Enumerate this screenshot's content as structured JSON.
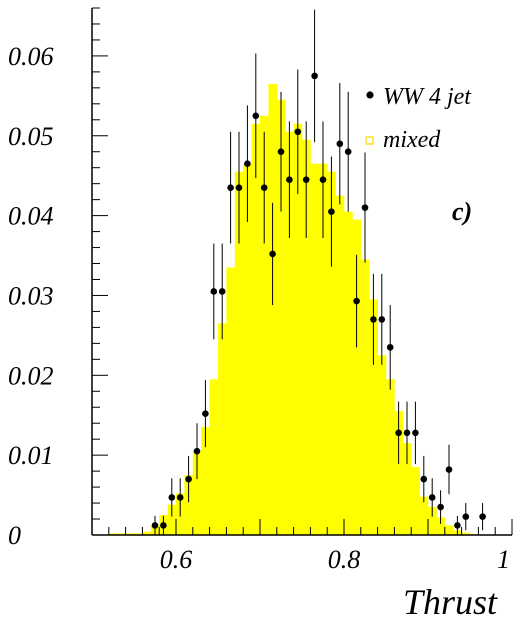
{
  "chart_data": {
    "type": "histogram",
    "xlabel": "Thrust",
    "ylabel": "",
    "xlim": [
      0.5,
      1.0
    ],
    "ylim": [
      0,
      0.066
    ],
    "x_ticks": [
      "0.6",
      "0.8",
      "1"
    ],
    "x_tick_values": [
      0.6,
      0.8,
      1.0
    ],
    "y_ticks": [
      "0",
      "0.01",
      "0.02",
      "0.03",
      "0.04",
      "0.05",
      "0.06"
    ],
    "y_tick_values": [
      0,
      0.01,
      0.02,
      0.03,
      0.04,
      0.05,
      0.06
    ],
    "panel_label": "c)",
    "colors": {
      "histogram_fill": "#ffff00",
      "points": "#000000",
      "axis": "#000000"
    },
    "bin_width": 0.01,
    "series": [
      {
        "name": "mixed",
        "style": "filled-histogram",
        "bin_lows": [
          0.52,
          0.53,
          0.54,
          0.55,
          0.56,
          0.57,
          0.58,
          0.59,
          0.6,
          0.61,
          0.62,
          0.63,
          0.64,
          0.65,
          0.66,
          0.67,
          0.68,
          0.69,
          0.7,
          0.71,
          0.72,
          0.73,
          0.74,
          0.75,
          0.76,
          0.77,
          0.78,
          0.79,
          0.8,
          0.81,
          0.82,
          0.83,
          0.84,
          0.85,
          0.86,
          0.87,
          0.88,
          0.89,
          0.9,
          0.91,
          0.92,
          0.93,
          0.94,
          0.95
        ],
        "values": [
          0.0002,
          0.0002,
          0.0002,
          0.0002,
          0.0004,
          0.0012,
          0.0025,
          0.0038,
          0.0052,
          0.0075,
          0.0105,
          0.0135,
          0.0195,
          0.0265,
          0.0335,
          0.0455,
          0.0465,
          0.0515,
          0.0525,
          0.0565,
          0.0545,
          0.0505,
          0.0515,
          0.0495,
          0.0465,
          0.0465,
          0.0455,
          0.0425,
          0.0405,
          0.0395,
          0.0345,
          0.0295,
          0.0225,
          0.0195,
          0.0155,
          0.0115,
          0.0085,
          0.0048,
          0.0035,
          0.0022,
          0.0012,
          0.0006,
          0.0003,
          0.0001
        ]
      },
      {
        "name": "WW 4 jet",
        "style": "points-with-errors",
        "x": [
          0.575,
          0.585,
          0.595,
          0.605,
          0.615,
          0.625,
          0.635,
          0.645,
          0.655,
          0.665,
          0.675,
          0.685,
          0.695,
          0.705,
          0.715,
          0.725,
          0.735,
          0.745,
          0.755,
          0.765,
          0.775,
          0.785,
          0.795,
          0.805,
          0.815,
          0.825,
          0.835,
          0.845,
          0.855,
          0.865,
          0.875,
          0.885,
          0.895,
          0.905,
          0.915,
          0.925,
          0.935,
          0.945,
          0.965
        ],
        "y": [
          0.0012,
          0.0012,
          0.0047,
          0.0047,
          0.007,
          0.0105,
          0.0152,
          0.0305,
          0.0305,
          0.0435,
          0.0435,
          0.0465,
          0.0525,
          0.0435,
          0.0352,
          0.048,
          0.0445,
          0.0505,
          0.0445,
          0.0575,
          0.0445,
          0.0405,
          0.049,
          0.048,
          0.0293,
          0.041,
          0.027,
          0.027,
          0.0235,
          0.0128,
          0.0128,
          0.0128,
          0.007,
          0.0047,
          0.0035,
          0.0082,
          0.0012,
          0.0023,
          0.0023
        ],
        "err": [
          0.0012,
          0.0012,
          0.0024,
          0.0024,
          0.0029,
          0.0035,
          0.0042,
          0.006,
          0.006,
          0.007,
          0.007,
          0.0073,
          0.0078,
          0.007,
          0.0064,
          0.0075,
          0.0073,
          0.0078,
          0.0073,
          0.0083,
          0.0073,
          0.0069,
          0.0076,
          0.0075,
          0.0058,
          0.0069,
          0.0057,
          0.0057,
          0.0053,
          0.0039,
          0.0039,
          0.0039,
          0.0029,
          0.0024,
          0.0021,
          0.0031,
          0.0012,
          0.0017,
          0.0017
        ]
      }
    ]
  }
}
